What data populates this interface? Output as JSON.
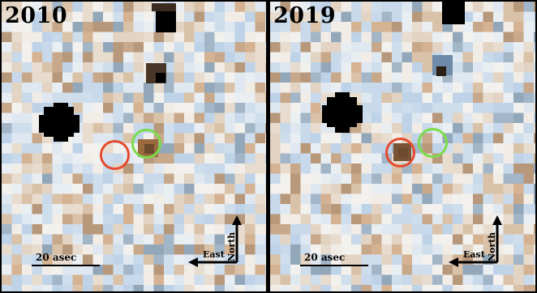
{
  "panels": [
    {
      "year": "2010",
      "scale_label": "20 asec",
      "north_label": "North",
      "east_label": "East",
      "markers": [
        {
          "color": "#e64a2e",
          "role": "red-circle"
        },
        {
          "color": "#7bdc4a",
          "role": "green-circle"
        }
      ]
    },
    {
      "year": "2019",
      "scale_label": "20 asec",
      "north_label": "North",
      "east_label": "East",
      "markers": [
        {
          "color": "#e64a2e",
          "role": "red-circle"
        },
        {
          "color": "#7bdc4a",
          "role": "green-circle"
        }
      ]
    }
  ],
  "palette": {
    "light": [
      "#e9eef3",
      "#dfe8f0",
      "#cfdeec",
      "#f1ece6",
      "#e8dccf",
      "#d9c2a8",
      "#c7d9ea",
      "#bfd3e8",
      "#f3f1ee",
      "#e2d3c2"
    ],
    "medium": [
      "#c8a88a",
      "#b8987a",
      "#a3b6c8",
      "#d4b292",
      "#93a7ba"
    ],
    "dark": "#000000",
    "brown": "#6b4a2f",
    "frame": "#000000"
  }
}
